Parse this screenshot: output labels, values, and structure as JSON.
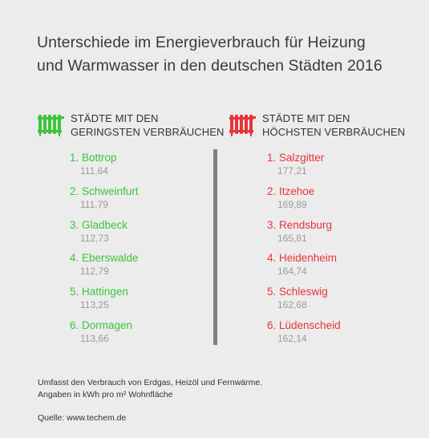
{
  "title": {
    "line1": "Unterschiede im Energieverbrauch für Heizung",
    "line2": "und Warmwasser in den deutschen Städten 2016"
  },
  "colors": {
    "low": "#3cc43c",
    "high": "#e8333a",
    "divider": "#808080",
    "background": "#ececec"
  },
  "low": {
    "icon": "radiator-icon",
    "heading_line1": "STÄDTE MIT DEN",
    "heading_line2": "GERINGSTEN VERBRÄUCHEN",
    "items": [
      {
        "name": "1. Bottrop",
        "value": "111,64"
      },
      {
        "name": "2. Schweinfurt",
        "value": "111,79"
      },
      {
        "name": "3. Gladbeck",
        "value": "112,73"
      },
      {
        "name": "4. Eberswalde",
        "value": "112,79"
      },
      {
        "name": "5. Hattingen",
        "value": "113,25"
      },
      {
        "name": "6. Dormagen",
        "value": "113,66"
      }
    ]
  },
  "high": {
    "icon": "radiator-icon",
    "heading_line1": "STÄDTE MIT DEN",
    "heading_line2": "HÖCHSTEN VERBRÄUCHEN",
    "items": [
      {
        "name": "1. Salzgitter",
        "value": "177,21"
      },
      {
        "name": "2. Itzehoe",
        "value": "169,89"
      },
      {
        "name": "3. Rendsburg",
        "value": "165,81"
      },
      {
        "name": "4. Heidenheim",
        "value": "164,74"
      },
      {
        "name": "5. Schleswig",
        "value": "162,68"
      },
      {
        "name": "6. Lüdenscheid",
        "value": "162,14"
      }
    ]
  },
  "footnote": {
    "line1": "Umfasst den Verbrauch von Erdgas, Heizöl und Fernwärme.",
    "line2": "Angaben in kWh pro m² Wohnfläche"
  },
  "source": "Quelle: www.techem.de"
}
